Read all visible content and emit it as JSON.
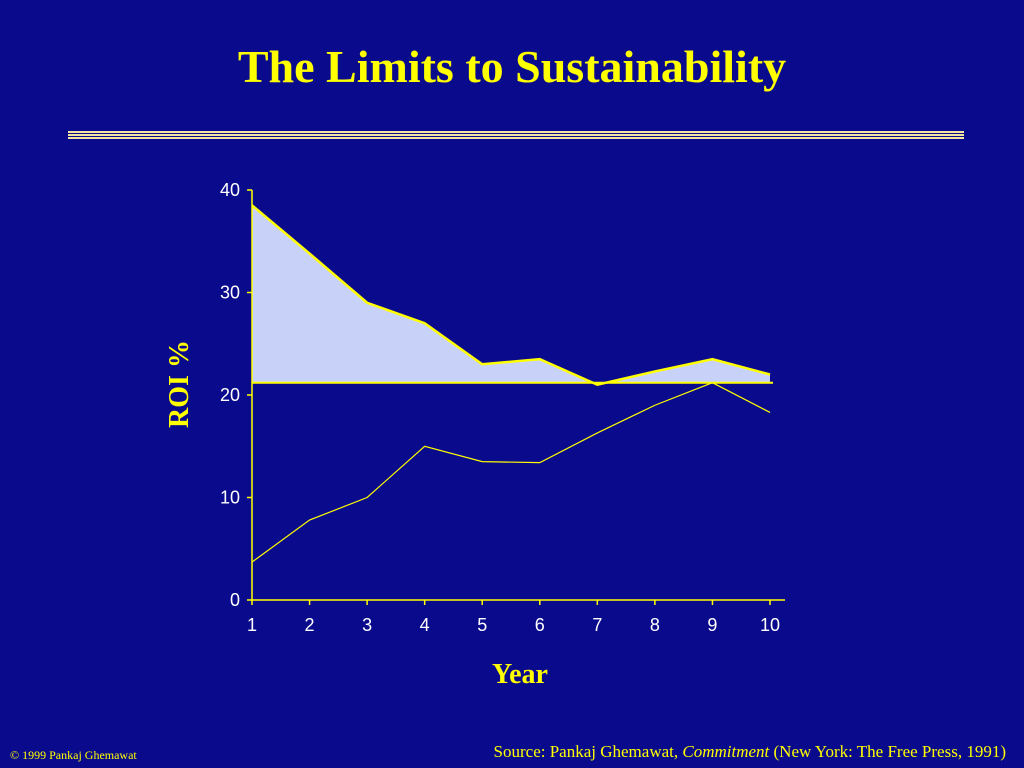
{
  "slide": {
    "title": "The Limits to Sustainability",
    "copyright": "© 1999 Pankaj Ghemawat",
    "source": {
      "prefix": "Source:  Pankaj Ghemawat, ",
      "book": "Commitment",
      "suffix": " (New York: The Free Press, 1991)"
    }
  },
  "colors": {
    "background": "#0a0a8c",
    "text": "#ffff00",
    "line": "#ffff00",
    "fill": "#c8d2f8"
  },
  "chart_data": {
    "type": "area",
    "title": "",
    "xlabel": "Year",
    "ylabel": "ROI %",
    "x": [
      1,
      2,
      3,
      4,
      5,
      6,
      7,
      8,
      9,
      10
    ],
    "xticks": [
      "1",
      "2",
      "3",
      "4",
      "5",
      "6",
      "7",
      "8",
      "9",
      "10"
    ],
    "yticks": [
      "0",
      "10",
      "20",
      "30",
      "40"
    ],
    "xlim": [
      1,
      10
    ],
    "ylim": [
      0,
      40
    ],
    "grid": false,
    "legend": "none",
    "series": [
      {
        "values": [
          38.5,
          33.8,
          29.0,
          27.0,
          23.0,
          23.5,
          21.0,
          22.3,
          23.5,
          22.0
        ]
      },
      {
        "values": [
          21.2,
          21.2,
          21.2,
          21.2,
          21.2,
          21.2,
          21.2,
          21.2,
          21.2,
          21.2
        ]
      },
      {
        "values": [
          3.7,
          7.8,
          10.0,
          15.0,
          13.5,
          13.4,
          16.3,
          19.0,
          21.2,
          18.3
        ]
      }
    ],
    "shaded_region": {
      "between_series": [
        0,
        1
      ]
    }
  }
}
